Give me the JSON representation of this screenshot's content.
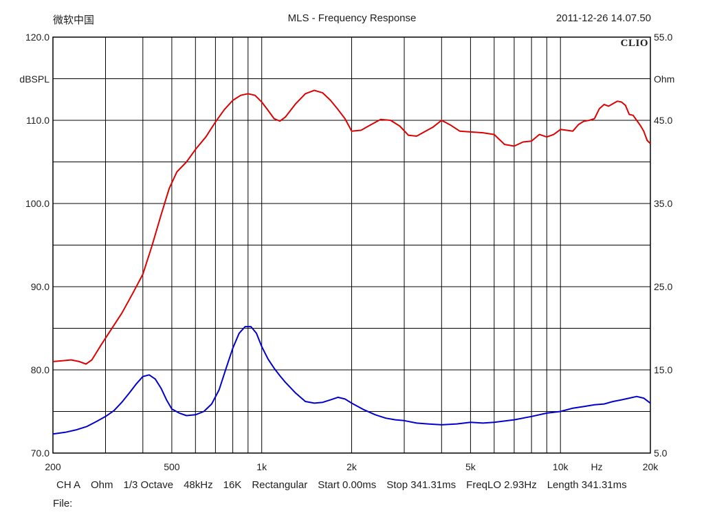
{
  "header": {
    "left": "微软中国",
    "title": "MLS - Frequency Response",
    "right": "2011-12-26 14.07.50"
  },
  "brand": "CLIO",
  "footer": {
    "params": [
      "CH A",
      "Ohm",
      "1/3 Octave",
      "48kHz",
      "16K",
      "Rectangular",
      "Start 0.00ms",
      "Stop 341.31ms",
      "FreqLO 2.93Hz",
      "Length 341.31ms"
    ],
    "file_label": "File:"
  },
  "chart_data": {
    "type": "line",
    "title": "MLS - Frequency Response",
    "x_scale": "log",
    "xlim": [
      200,
      20000
    ],
    "x_ticks": [
      {
        "value": 200,
        "label": "200"
      },
      {
        "value": 500,
        "label": "500"
      },
      {
        "value": 1000,
        "label": "1k"
      },
      {
        "value": 2000,
        "label": "2k"
      },
      {
        "value": 5000,
        "label": "5k"
      },
      {
        "value": 10000,
        "label": "10k"
      },
      {
        "value": 20000,
        "label": "20k"
      }
    ],
    "x_unit_label": "Hz",
    "x_gridlines": [
      200,
      300,
      400,
      500,
      600,
      700,
      800,
      900,
      1000,
      2000,
      3000,
      4000,
      5000,
      6000,
      7000,
      8000,
      9000,
      10000,
      20000
    ],
    "y_left": {
      "label": "dBSPL",
      "ylim": [
        70,
        120
      ],
      "ticks": [
        {
          "value": 120,
          "label": "120.0"
        },
        {
          "value": 110,
          "label": "110.0"
        },
        {
          "value": 100,
          "label": "100.0"
        },
        {
          "value": 90,
          "label": "90.0"
        },
        {
          "value": 80,
          "label": "80.0"
        },
        {
          "value": 70,
          "label": "70.0"
        }
      ],
      "gridlines": [
        70,
        75,
        80,
        85,
        90,
        95,
        100,
        105,
        110,
        115,
        120
      ]
    },
    "y_right": {
      "label": "Ohm",
      "ylim": [
        5,
        55
      ],
      "ticks": [
        {
          "value": 55,
          "label": "55.0"
        },
        {
          "value": 45,
          "label": "45.0"
        },
        {
          "value": 35,
          "label": "35.0"
        },
        {
          "value": 25,
          "label": "25.0"
        },
        {
          "value": 15,
          "label": "15.0"
        },
        {
          "value": 5,
          "label": "5.0"
        }
      ]
    },
    "grid": true,
    "series": [
      {
        "color": "#dd0000",
        "axis": "left",
        "x": [
          200,
          215,
          230,
          245,
          258,
          270,
          290,
          310,
          340,
          370,
          400,
          430,
          460,
          490,
          520,
          560,
          600,
          650,
          700,
          750,
          800,
          850,
          900,
          950,
          1000,
          1050,
          1100,
          1150,
          1200,
          1300,
          1400,
          1500,
          1600,
          1700,
          1800,
          1900,
          2000,
          2150,
          2300,
          2500,
          2700,
          2900,
          3100,
          3300,
          3500,
          3750,
          4000,
          4300,
          4600,
          5000,
          5500,
          6000,
          6500,
          7000,
          7500,
          8000,
          8500,
          9000,
          9500,
          10000,
          10500,
          11000,
          11500,
          12000,
          12500,
          13000,
          13500,
          14000,
          14500,
          15000,
          15500,
          16000,
          16500,
          17000,
          17500,
          18000,
          18500,
          19000,
          19500,
          20000
        ],
        "values": [
          81.0,
          81.1,
          81.2,
          81.0,
          80.7,
          81.2,
          83.0,
          84.6,
          86.8,
          89.2,
          91.5,
          95.0,
          98.6,
          101.8,
          103.8,
          105.0,
          106.5,
          108.0,
          109.8,
          111.3,
          112.4,
          113.0,
          113.2,
          113.0,
          112.2,
          111.2,
          110.2,
          109.9,
          110.4,
          112.0,
          113.2,
          113.6,
          113.3,
          112.4,
          111.3,
          110.2,
          108.7,
          108.8,
          109.4,
          110.1,
          110.0,
          109.3,
          108.2,
          108.1,
          108.6,
          109.2,
          110.0,
          109.4,
          108.7,
          108.6,
          108.5,
          108.3,
          107.1,
          106.9,
          107.4,
          107.5,
          108.3,
          108.0,
          108.3,
          108.9,
          108.8,
          108.7,
          109.5,
          109.9,
          110.0,
          110.2,
          111.4,
          111.9,
          111.7,
          112.0,
          112.3,
          112.2,
          111.8,
          110.7,
          110.6,
          110.0,
          109.4,
          108.7,
          107.6,
          107.2
        ]
      },
      {
        "color": "#0000cc",
        "axis": "right",
        "x": [
          200,
          220,
          240,
          260,
          280,
          300,
          320,
          340,
          360,
          380,
          400,
          420,
          440,
          460,
          480,
          500,
          530,
          560,
          600,
          640,
          680,
          720,
          760,
          800,
          840,
          880,
          920,
          960,
          1000,
          1050,
          1100,
          1150,
          1200,
          1300,
          1400,
          1500,
          1600,
          1700,
          1800,
          1900,
          2000,
          2200,
          2400,
          2600,
          2800,
          3000,
          3300,
          3600,
          4000,
          4500,
          5000,
          5500,
          6000,
          7000,
          8000,
          9000,
          10000,
          11000,
          12000,
          13000,
          14000,
          15000,
          16000,
          17000,
          18000,
          19000,
          20000
        ],
        "values": [
          7.3,
          7.5,
          7.8,
          8.2,
          8.8,
          9.4,
          10.1,
          11.1,
          12.2,
          13.3,
          14.2,
          14.4,
          13.9,
          12.8,
          11.4,
          10.3,
          9.8,
          9.5,
          9.6,
          10.0,
          10.9,
          12.6,
          15.2,
          17.6,
          19.4,
          20.2,
          20.2,
          19.4,
          17.8,
          16.3,
          15.2,
          14.3,
          13.5,
          12.2,
          11.2,
          11.0,
          11.1,
          11.4,
          11.7,
          11.5,
          11.0,
          10.2,
          9.6,
          9.2,
          9.0,
          8.9,
          8.6,
          8.5,
          8.4,
          8.5,
          8.7,
          8.6,
          8.7,
          9.0,
          9.4,
          9.8,
          10.0,
          10.4,
          10.6,
          10.8,
          10.9,
          11.2,
          11.4,
          11.6,
          11.8,
          11.6,
          11.0
        ]
      }
    ]
  }
}
